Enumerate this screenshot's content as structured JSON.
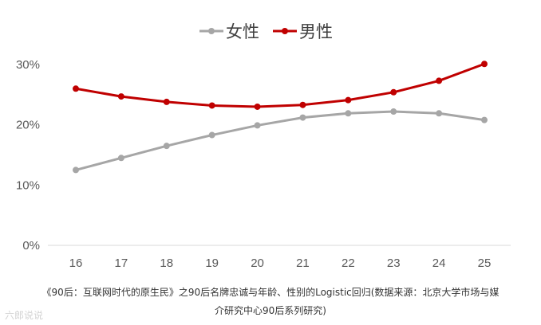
{
  "chart_data": {
    "type": "line",
    "categories": [
      "16",
      "17",
      "18",
      "19",
      "20",
      "21",
      "22",
      "23",
      "24",
      "25"
    ],
    "series": [
      {
        "name": "女性",
        "color": "#a6a6a6",
        "values": [
          12.5,
          14.5,
          16.5,
          18.3,
          19.9,
          21.2,
          21.9,
          22.2,
          21.9,
          20.8
        ]
      },
      {
        "name": "男性",
        "color": "#c00000",
        "values": [
          26.0,
          24.7,
          23.8,
          23.2,
          23.0,
          23.3,
          24.1,
          25.4,
          27.3,
          30.1
        ]
      }
    ],
    "yticks": [
      "0%",
      "10%",
      "20%",
      "30%"
    ],
    "ylim": [
      0,
      30
    ],
    "grid": false,
    "legend_position": "top-center",
    "title": "",
    "xlabel": "",
    "ylabel": ""
  },
  "caption": {
    "line1": "《90后：互联网时代的原生民》之90后名牌忠诚与年龄、性别的Logistic回归(数据来源：北京大学市场与媒",
    "line2": "介研究中心90后系列研究)"
  },
  "watermark": "六郎说说"
}
